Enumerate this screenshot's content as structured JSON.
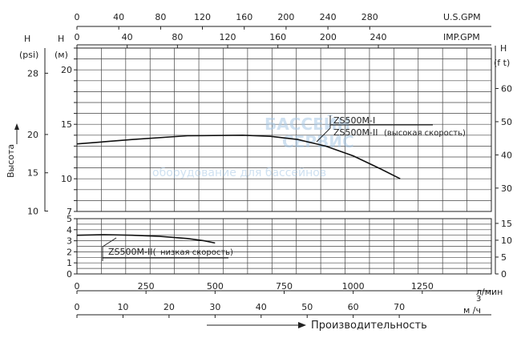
{
  "chart_data": [
    {
      "type": "line",
      "name": "upper",
      "xlim": [
        0,
        1500
      ],
      "ylim": [
        7,
        22
      ],
      "series": [
        {
          "name": "ZS500M-I",
          "x": [
            0,
            200,
            400,
            600,
            700,
            800,
            900,
            1000,
            1100,
            1170
          ],
          "y": [
            13.2,
            13.6,
            13.95,
            14.0,
            13.9,
            13.6,
            13.0,
            12.1,
            10.9,
            10.0
          ]
        }
      ],
      "annotations": [
        "ZS500M-I",
        "ZS500M-II",
        "(высокая скорость)"
      ],
      "ylabel_m": "H",
      "ylabel_m_unit": "(м)",
      "ylabel_psi": "H",
      "ylabel_psi_unit": "(psi)",
      "ylabel_ft": "H",
      "ylabel_ft_unit": "(f t)",
      "m_ticks": [
        7,
        10,
        15,
        20
      ],
      "psi_ticks": [
        10,
        15,
        20,
        28
      ],
      "ft_ticks": [
        30,
        40,
        50,
        60
      ],
      "side_label": "Высота"
    },
    {
      "type": "line",
      "name": "lower",
      "xlim": [
        0,
        1500
      ],
      "ylim": [
        0,
        5
      ],
      "series": [
        {
          "name": "ZS500M-II",
          "x": [
            0,
            100,
            200,
            300,
            400,
            460,
            500
          ],
          "y": [
            3.5,
            3.55,
            3.5,
            3.4,
            3.2,
            3.0,
            2.8
          ]
        }
      ],
      "annotations": [
        "ZS500M-II(",
        "низкая скорость)"
      ],
      "m_ticks": [
        0,
        1,
        2,
        3,
        4,
        5
      ],
      "ft_ticks": [
        0,
        5,
        10,
        15
      ]
    }
  ],
  "axes": {
    "usgpm": {
      "label": "U.S.GPM",
      "ticks": [
        0,
        40,
        80,
        120,
        160,
        200,
        240,
        280
      ]
    },
    "impgpm": {
      "label": "IMP.GPM",
      "ticks": [
        0,
        40,
        80,
        120,
        160,
        200,
        240
      ]
    },
    "lmin": {
      "label": "л/мин",
      "ticks": [
        0,
        250,
        500,
        750,
        1000,
        1250
      ]
    },
    "m3h": {
      "label": "м /ч",
      "sup": "3",
      "ticks": [
        0,
        10,
        20,
        30,
        40,
        50,
        60,
        70
      ]
    },
    "x_title": "Производительность"
  },
  "watermark": {
    "line1": "БАССЕЙН",
    "line2": "СЕРВИС",
    "line3": "оборудование для бассейнов"
  }
}
